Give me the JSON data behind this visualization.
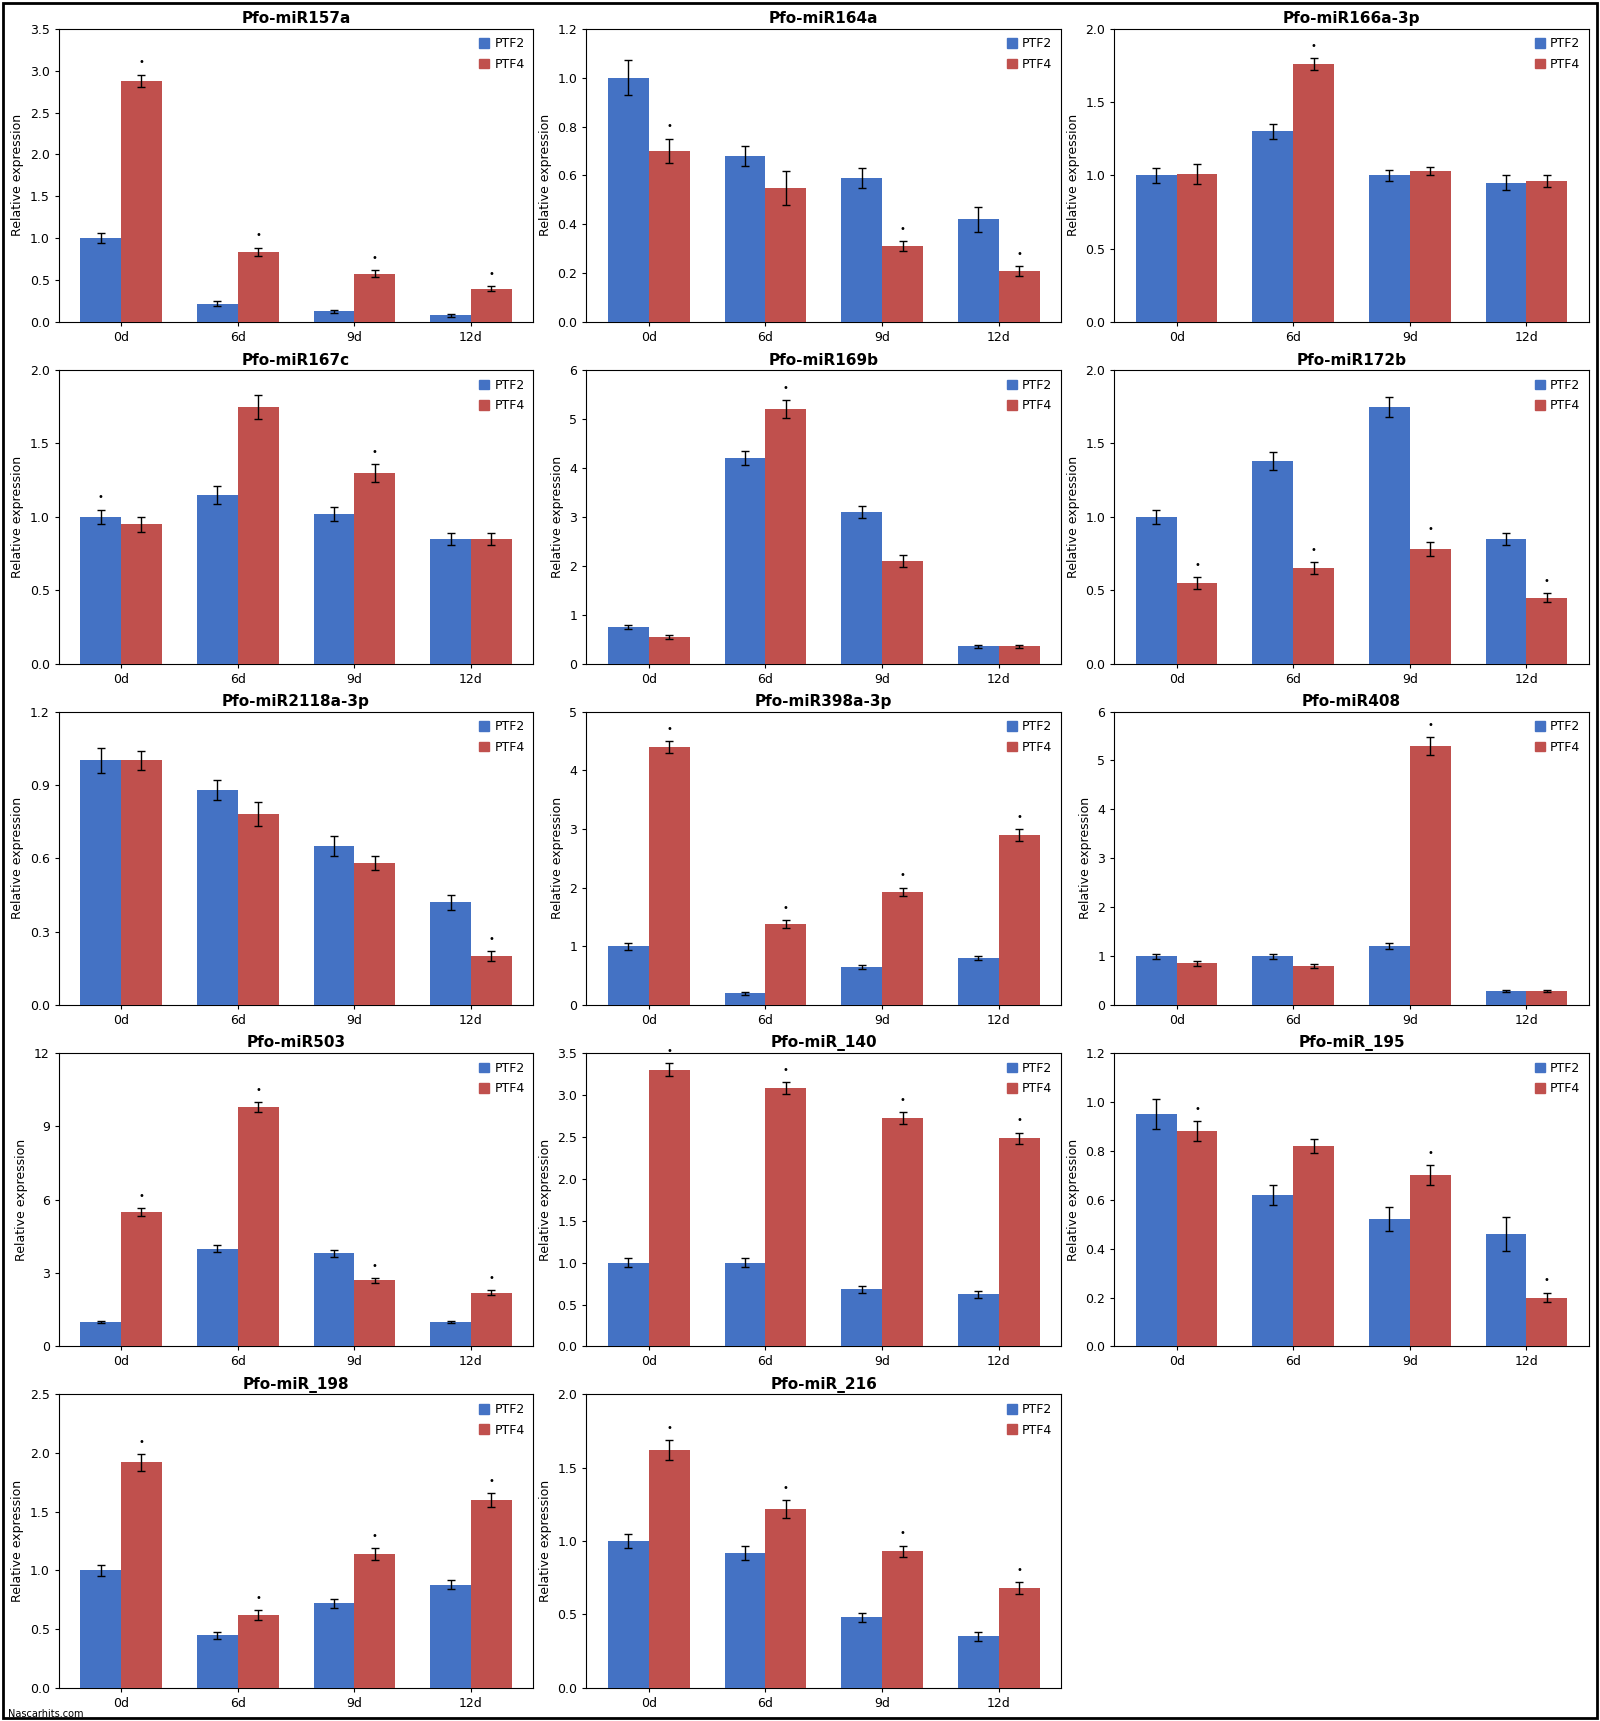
{
  "subplots": [
    {
      "title": "Pfo-miR157a",
      "ylim": [
        0,
        3.5
      ],
      "yticks": [
        0,
        0.5,
        1.0,
        1.5,
        2.0,
        2.5,
        3.0,
        3.5
      ],
      "ptf2": [
        1.0,
        0.22,
        0.13,
        0.08
      ],
      "ptf4": [
        2.88,
        0.84,
        0.58,
        0.4
      ],
      "ptf2_err": [
        0.06,
        0.03,
        0.02,
        0.02
      ],
      "ptf4_err": [
        0.07,
        0.05,
        0.04,
        0.03
      ],
      "ptf4_star": [
        true,
        true,
        true,
        true
      ],
      "ptf2_star": [
        false,
        false,
        false,
        false
      ]
    },
    {
      "title": "Pfo-miR164a",
      "ylim": [
        0,
        1.2
      ],
      "yticks": [
        0,
        0.2,
        0.4,
        0.6,
        0.8,
        1.0,
        1.2
      ],
      "ptf2": [
        1.0,
        0.68,
        0.59,
        0.42
      ],
      "ptf4": [
        0.7,
        0.55,
        0.31,
        0.21
      ],
      "ptf2_err": [
        0.07,
        0.04,
        0.04,
        0.05
      ],
      "ptf4_err": [
        0.05,
        0.07,
        0.02,
        0.02
      ],
      "ptf4_star": [
        true,
        false,
        true,
        true
      ],
      "ptf2_star": [
        false,
        false,
        false,
        false
      ]
    },
    {
      "title": "Pfo-miR166a-3p",
      "ylim": [
        0,
        2.0
      ],
      "yticks": [
        0,
        0.5,
        1.0,
        1.5,
        2.0
      ],
      "ptf2": [
        1.0,
        1.3,
        1.0,
        0.95
      ],
      "ptf4": [
        1.01,
        1.76,
        1.03,
        0.96
      ],
      "ptf2_err": [
        0.05,
        0.05,
        0.04,
        0.05
      ],
      "ptf4_err": [
        0.07,
        0.04,
        0.03,
        0.04
      ],
      "ptf4_star": [
        false,
        true,
        false,
        false
      ],
      "ptf2_star": [
        false,
        false,
        false,
        false
      ]
    },
    {
      "title": "Pfo-miR167c",
      "ylim": [
        0,
        2.0
      ],
      "yticks": [
        0,
        0.5,
        1.0,
        1.5,
        2.0
      ],
      "ptf2": [
        1.0,
        1.15,
        1.02,
        0.85
      ],
      "ptf4": [
        0.95,
        1.75,
        1.3,
        0.85
      ],
      "ptf2_err": [
        0.05,
        0.06,
        0.05,
        0.04
      ],
      "ptf4_err": [
        0.05,
        0.08,
        0.06,
        0.04
      ],
      "ptf4_star": [
        false,
        false,
        true,
        false
      ],
      "ptf2_star": [
        true,
        false,
        false,
        false
      ]
    },
    {
      "title": "Pfo-miR169b",
      "ylim": [
        0,
        6
      ],
      "yticks": [
        0,
        1,
        2,
        3,
        4,
        5,
        6
      ],
      "ptf2": [
        0.75,
        4.2,
        3.1,
        0.35
      ],
      "ptf4": [
        0.55,
        5.2,
        2.1,
        0.35
      ],
      "ptf2_err": [
        0.04,
        0.15,
        0.12,
        0.03
      ],
      "ptf4_err": [
        0.04,
        0.18,
        0.12,
        0.03
      ],
      "ptf4_star": [
        false,
        true,
        false,
        false
      ],
      "ptf2_star": [
        false,
        false,
        false,
        false
      ]
    },
    {
      "title": "Pfo-miR172b",
      "ylim": [
        0,
        2.0
      ],
      "yticks": [
        0,
        0.5,
        1.0,
        1.5,
        2.0
      ],
      "ptf2": [
        1.0,
        1.38,
        1.75,
        0.85
      ],
      "ptf4": [
        0.55,
        0.65,
        0.78,
        0.45
      ],
      "ptf2_err": [
        0.05,
        0.06,
        0.07,
        0.04
      ],
      "ptf4_err": [
        0.04,
        0.04,
        0.05,
        0.03
      ],
      "ptf4_star": [
        true,
        true,
        true,
        true
      ],
      "ptf2_star": [
        false,
        false,
        false,
        false
      ]
    },
    {
      "title": "Pfo-miR2118a-3p",
      "ylim": [
        0,
        1.2
      ],
      "yticks": [
        0,
        0.3,
        0.6,
        0.9,
        1.2
      ],
      "ptf2": [
        1.0,
        0.88,
        0.65,
        0.42
      ],
      "ptf4": [
        1.0,
        0.78,
        0.58,
        0.2
      ],
      "ptf2_err": [
        0.05,
        0.04,
        0.04,
        0.03
      ],
      "ptf4_err": [
        0.04,
        0.05,
        0.03,
        0.02
      ],
      "ptf4_star": [
        false,
        false,
        false,
        true
      ],
      "ptf2_star": [
        false,
        false,
        false,
        false
      ]
    },
    {
      "title": "Pfo-miR398a-3p",
      "ylim": [
        0,
        5
      ],
      "yticks": [
        0,
        1,
        2,
        3,
        4,
        5
      ],
      "ptf2": [
        1.0,
        0.2,
        0.65,
        0.8
      ],
      "ptf4": [
        4.4,
        1.38,
        1.93,
        2.9
      ],
      "ptf2_err": [
        0.06,
        0.03,
        0.04,
        0.04
      ],
      "ptf4_err": [
        0.1,
        0.07,
        0.07,
        0.1
      ],
      "ptf4_star": [
        true,
        true,
        true,
        true
      ],
      "ptf2_star": [
        false,
        false,
        false,
        false
      ]
    },
    {
      "title": "Pfo-miR408",
      "ylim": [
        0,
        6
      ],
      "yticks": [
        0,
        1,
        2,
        3,
        4,
        5,
        6
      ],
      "ptf2": [
        1.0,
        1.0,
        1.2,
        0.28
      ],
      "ptf4": [
        0.85,
        0.8,
        5.3,
        0.28
      ],
      "ptf2_err": [
        0.05,
        0.05,
        0.06,
        0.02
      ],
      "ptf4_err": [
        0.05,
        0.04,
        0.18,
        0.02
      ],
      "ptf4_star": [
        false,
        false,
        true,
        false
      ],
      "ptf2_star": [
        false,
        false,
        false,
        false
      ]
    },
    {
      "title": "Pfo-miR503",
      "ylim": [
        0,
        12
      ],
      "yticks": [
        0,
        3,
        6,
        9,
        12
      ],
      "ptf2": [
        1.0,
        4.0,
        3.8,
        1.0
      ],
      "ptf4": [
        5.5,
        9.8,
        2.7,
        2.2
      ],
      "ptf2_err": [
        0.06,
        0.15,
        0.14,
        0.06
      ],
      "ptf4_err": [
        0.15,
        0.2,
        0.1,
        0.1
      ],
      "ptf4_star": [
        true,
        true,
        true,
        true
      ],
      "ptf2_star": [
        false,
        false,
        false,
        false
      ]
    },
    {
      "title": "Pfo-miR_140",
      "ylim": [
        0,
        3.5
      ],
      "yticks": [
        0,
        0.5,
        1.0,
        1.5,
        2.0,
        2.5,
        3.0,
        3.5
      ],
      "ptf2": [
        1.0,
        1.0,
        0.68,
        0.62
      ],
      "ptf4": [
        3.3,
        3.08,
        2.72,
        2.48
      ],
      "ptf2_err": [
        0.05,
        0.05,
        0.04,
        0.04
      ],
      "ptf4_err": [
        0.08,
        0.07,
        0.07,
        0.07
      ],
      "ptf4_star": [
        true,
        true,
        true,
        true
      ],
      "ptf2_star": [
        false,
        false,
        false,
        false
      ]
    },
    {
      "title": "Pfo-miR_195",
      "ylim": [
        0,
        1.2
      ],
      "yticks": [
        0,
        0.2,
        0.4,
        0.6,
        0.8,
        1.0,
        1.2
      ],
      "ptf2": [
        0.95,
        0.62,
        0.52,
        0.46
      ],
      "ptf4": [
        0.88,
        0.82,
        0.7,
        0.2
      ],
      "ptf2_err": [
        0.06,
        0.04,
        0.05,
        0.07
      ],
      "ptf4_err": [
        0.04,
        0.03,
        0.04,
        0.02
      ],
      "ptf4_star": [
        true,
        false,
        true,
        true
      ],
      "ptf2_star": [
        false,
        false,
        false,
        false
      ]
    },
    {
      "title": "Pfo-miR_198",
      "ylim": [
        0,
        2.5
      ],
      "yticks": [
        0,
        0.5,
        1.0,
        1.5,
        2.0,
        2.5
      ],
      "ptf2": [
        1.0,
        0.45,
        0.72,
        0.88
      ],
      "ptf4": [
        1.92,
        0.62,
        1.14,
        1.6
      ],
      "ptf2_err": [
        0.05,
        0.03,
        0.04,
        0.04
      ],
      "ptf4_err": [
        0.07,
        0.04,
        0.05,
        0.06
      ],
      "ptf4_star": [
        true,
        true,
        true,
        true
      ],
      "ptf2_star": [
        false,
        false,
        false,
        false
      ]
    },
    {
      "title": "Pfo-miR_216",
      "ylim": [
        0,
        2.0
      ],
      "yticks": [
        0,
        0.5,
        1.0,
        1.5,
        2.0
      ],
      "ptf2": [
        1.0,
        0.92,
        0.48,
        0.35
      ],
      "ptf4": [
        1.62,
        1.22,
        0.93,
        0.68
      ],
      "ptf2_err": [
        0.05,
        0.05,
        0.03,
        0.03
      ],
      "ptf4_err": [
        0.07,
        0.06,
        0.04,
        0.04
      ],
      "ptf4_star": [
        true,
        true,
        true,
        true
      ],
      "ptf2_star": [
        false,
        false,
        false,
        false
      ]
    }
  ],
  "categories": [
    "0d",
    "6d",
    "9d",
    "12d"
  ],
  "ptf2_color": "#4472C4",
  "ptf4_color": "#C0504D",
  "bar_width": 0.35,
  "ylabel": "Relative expression",
  "title_fontsize": 11,
  "axis_fontsize": 9,
  "legend_fontsize": 9,
  "background_color": "#FFFFFF",
  "cell_bg_color": "#FFFFFF"
}
